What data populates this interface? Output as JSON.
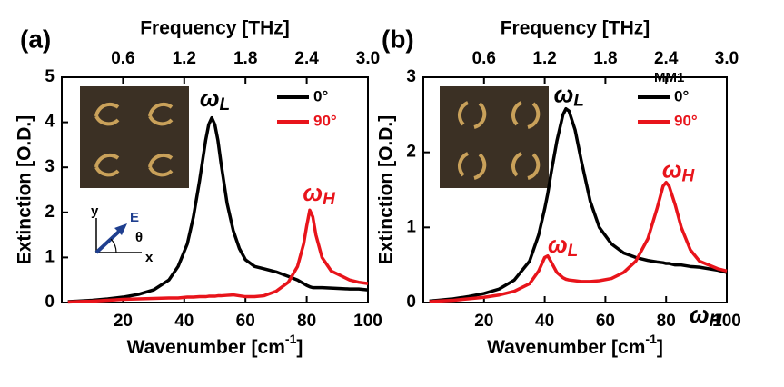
{
  "chart_data": [
    {
      "type": "line",
      "panel": "(a)",
      "xlabel": "Wavenumber [cm",
      "xlabel_sup": "-1",
      "xlabel_end": "]",
      "ylabel": "Extinction [O.D.]",
      "x2label": "Frequency [THz]",
      "xlim": [
        0,
        100
      ],
      "xticks": [
        20,
        40,
        60,
        80,
        100
      ],
      "x2lim": [
        0,
        3.0
      ],
      "x2ticks": [
        0.6,
        1.2,
        1.8,
        2.4,
        {
          "value": 3,
          "label": "3.0"
        }
      ],
      "ylim": [
        0,
        5
      ],
      "yticks": [
        0,
        1,
        2,
        3,
        4,
        5
      ],
      "x": [
        2,
        5,
        10,
        15,
        20,
        25,
        30,
        35,
        38,
        41,
        43,
        45,
        47,
        48,
        49,
        50,
        51,
        52,
        54,
        56,
        58,
        60,
        63,
        66,
        70,
        74,
        77,
        79,
        80,
        81,
        82,
        83,
        85,
        88,
        91,
        94,
        97,
        100
      ],
      "series": [
        {
          "name": "0°",
          "color": "#000000",
          "values": [
            0.02,
            0.03,
            0.05,
            0.08,
            0.12,
            0.18,
            0.28,
            0.5,
            0.8,
            1.3,
            1.9,
            2.7,
            3.6,
            3.95,
            4.1,
            3.95,
            3.6,
            3.1,
            2.2,
            1.6,
            1.2,
            0.95,
            0.8,
            0.75,
            0.68,
            0.58,
            0.5,
            0.42,
            0.38,
            0.35,
            0.33,
            0.33,
            0.33,
            0.32,
            0.31,
            0.3,
            0.3,
            0.28
          ]
        },
        {
          "name": "90°",
          "color": "#e8141b",
          "values": [
            0.01,
            0.02,
            0.03,
            0.05,
            0.07,
            0.08,
            0.09,
            0.1,
            0.1,
            0.12,
            0.12,
            0.13,
            0.13,
            0.14,
            0.14,
            0.14,
            0.15,
            0.15,
            0.16,
            0.17,
            0.15,
            0.13,
            0.13,
            0.15,
            0.25,
            0.45,
            0.8,
            1.3,
            1.7,
            2.05,
            1.9,
            1.5,
            1.0,
            0.7,
            0.6,
            0.5,
            0.45,
            0.42
          ]
        }
      ],
      "annotations": [
        {
          "text": "ω",
          "sub": "L",
          "color": "#000000"
        },
        {
          "text": "ω",
          "sub": "H",
          "color": "#e8141b"
        }
      ],
      "inset_labels": [
        "y",
        "E",
        "θ",
        "x"
      ]
    },
    {
      "type": "line",
      "panel": "(b)",
      "xlabel": "Wavenumber [cm",
      "xlabel_sup": "-1",
      "xlabel_end": "]",
      "ylabel": "Extinction [O.D.]",
      "x2label": "Frequency [THz]",
      "xlim": [
        0,
        100
      ],
      "xticks": [
        20,
        40,
        60,
        80,
        100
      ],
      "x2lim": [
        0,
        3.0
      ],
      "x2ticks": [
        0.6,
        1.2,
        1.8,
        2.4,
        {
          "value": 3,
          "label": "3.0"
        }
      ],
      "ylim": [
        0,
        3
      ],
      "yticks": [
        0,
        1,
        2,
        3
      ],
      "legend_title": "MM1",
      "x": [
        2,
        5,
        10,
        15,
        20,
        25,
        30,
        35,
        38,
        40,
        41,
        42,
        44,
        46,
        47,
        48,
        50,
        52,
        55,
        58,
        62,
        66,
        70,
        74,
        77,
        79,
        80,
        81,
        83,
        85,
        88,
        91,
        94,
        97,
        100
      ],
      "series": [
        {
          "name": "0°",
          "color": "#000000",
          "values": [
            0.02,
            0.03,
            0.05,
            0.08,
            0.12,
            0.18,
            0.3,
            0.55,
            0.9,
            1.25,
            1.45,
            1.7,
            2.15,
            2.5,
            2.58,
            2.55,
            2.3,
            1.9,
            1.35,
            1.0,
            0.78,
            0.66,
            0.6,
            0.56,
            0.54,
            0.53,
            0.52,
            0.52,
            0.5,
            0.5,
            0.48,
            0.47,
            0.45,
            0.43,
            0.4
          ]
        },
        {
          "name": "90°",
          "color": "#e8141b",
          "values": [
            0.01,
            0.02,
            0.03,
            0.05,
            0.07,
            0.1,
            0.15,
            0.25,
            0.42,
            0.6,
            0.62,
            0.55,
            0.4,
            0.33,
            0.31,
            0.3,
            0.29,
            0.28,
            0.28,
            0.29,
            0.32,
            0.4,
            0.55,
            0.85,
            1.25,
            1.55,
            1.6,
            1.55,
            1.3,
            1.0,
            0.7,
            0.55,
            0.5,
            0.45,
            0.42
          ]
        }
      ],
      "annotations": [
        {
          "text": "ω",
          "sub": "L",
          "color": "#000000"
        },
        {
          "text": "ω",
          "sub": "H",
          "color": "#e8141b"
        },
        {
          "text": "ω",
          "sub": "L",
          "color": "#e8141b"
        },
        {
          "text": "ω",
          "sub": "H",
          "color": "#000000"
        }
      ]
    }
  ]
}
